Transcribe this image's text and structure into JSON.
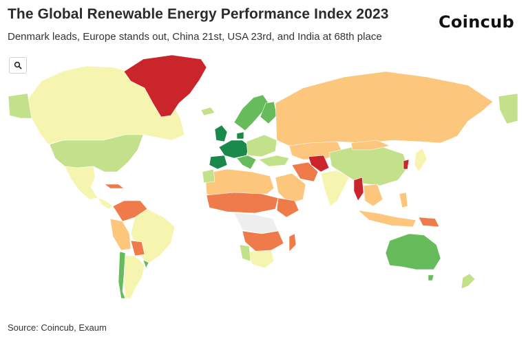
{
  "header": {
    "title": "The Global Renewable Energy Performance Index 2023",
    "subtitle": "Denmark leads, Europe stands out, China 21st, USA 23rd, and India at 68th place",
    "logo_text": "Coincub"
  },
  "toolbar": {
    "search_icon": "search-icon"
  },
  "footer": {
    "source": "Source: Coincub, Exaum"
  },
  "colors": {
    "dark_green": "#1a8a4c",
    "green": "#66bb5a",
    "light_green": "#c3e08a",
    "pale_yellow": "#f6f5b0",
    "light_orange": "#fcc77d",
    "orange": "#ef7a4a",
    "red": "#c9252b",
    "no_data": "#eeeeee"
  }
}
